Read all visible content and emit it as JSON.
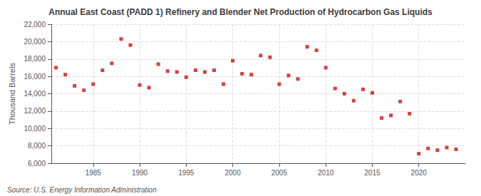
{
  "chart_data": {
    "type": "scatter",
    "title": "Annual East Coast (PADD 1) Refinery and Blender Net Production of Hydrocarbon Gas Liquids",
    "ylabel": "Thousand Barrels",
    "annotations": [
      "Source: U.S. Energy Information Administration"
    ],
    "x": [
      1981,
      1982,
      1983,
      1984,
      1985,
      1986,
      1987,
      1988,
      1989,
      1990,
      1991,
      1992,
      1993,
      1994,
      1995,
      1996,
      1997,
      1998,
      1999,
      2000,
      2001,
      2002,
      2003,
      2004,
      2005,
      2006,
      2007,
      2008,
      2009,
      2010,
      2011,
      2012,
      2013,
      2014,
      2015,
      2016,
      2017,
      2018,
      2019,
      2020,
      2021,
      2022,
      2023,
      2024
    ],
    "values": [
      17000,
      16200,
      14900,
      14400,
      15100,
      16700,
      17500,
      20300,
      19600,
      15000,
      14700,
      17400,
      16600,
      16500,
      15900,
      16700,
      16500,
      16700,
      15100,
      17800,
      16300,
      16200,
      18400,
      18200,
      15100,
      16100,
      15700,
      19400,
      19000,
      17000,
      14600,
      14000,
      13200,
      14500,
      14100,
      11200,
      11500,
      13100,
      11700,
      7100,
      7700,
      7500,
      7800,
      7600
    ],
    "color": "#cc1111",
    "marker": "square",
    "xlim": [
      1980.5,
      2025
    ],
    "xticks": [
      1985,
      1990,
      1995,
      2000,
      2005,
      2010,
      2015,
      2020
    ],
    "ylim": [
      6000,
      22000
    ],
    "yticks": [
      {
        "value": 6000,
        "label": "6,000"
      },
      {
        "value": 8000,
        "label": "8,000"
      },
      {
        "value": 10000,
        "label": "10,000"
      },
      {
        "value": 12000,
        "label": "12,000"
      },
      {
        "value": 14000,
        "label": "14,000"
      },
      {
        "value": 16000,
        "label": "16,000"
      },
      {
        "value": 18000,
        "label": "18,000"
      },
      {
        "value": 20000,
        "label": "20,000"
      },
      {
        "value": 22000,
        "label": "22,000"
      }
    ],
    "grid": true
  }
}
